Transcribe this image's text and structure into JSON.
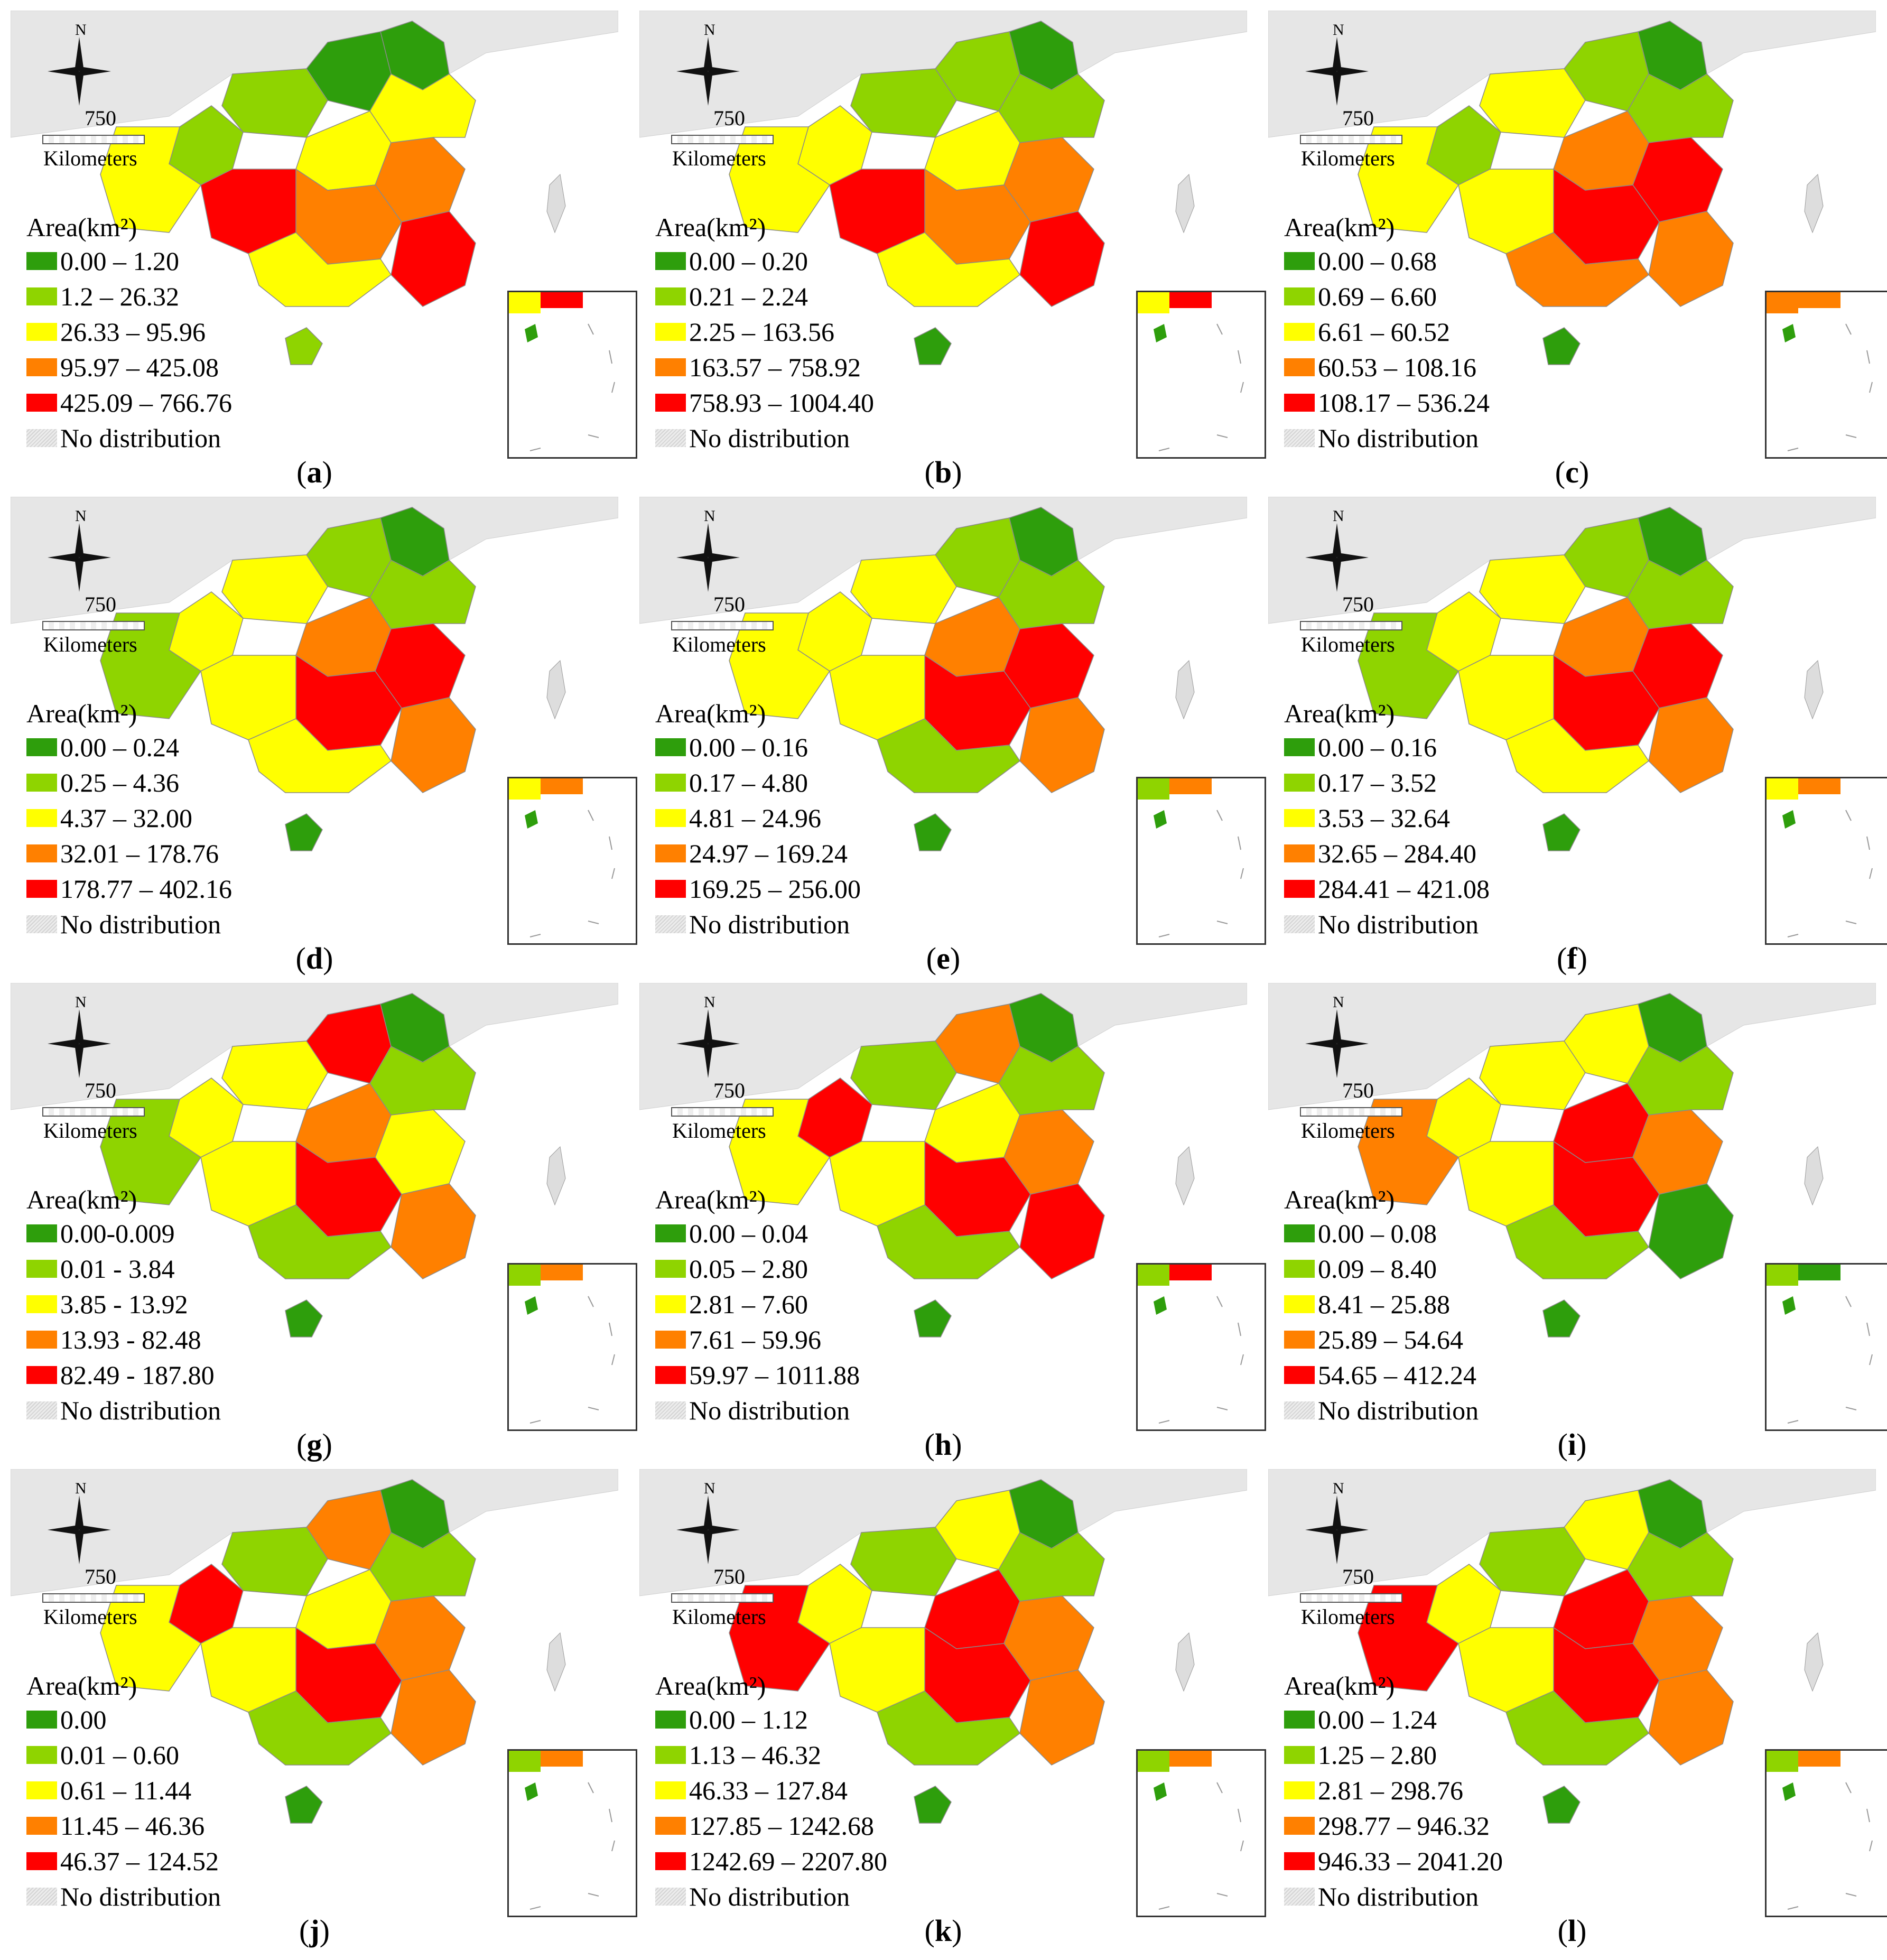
{
  "figure": {
    "colors": {
      "class1": "#2e9e0c",
      "class2": "#8fd400",
      "class3": "#ffff00",
      "class4": "#ff8000",
      "class5": "#ff0000",
      "no_distribution": "#dddddd",
      "background_map": "#e6e6e6"
    },
    "common": {
      "north_label": "N",
      "scale_value": "750",
      "scale_unit": "Kilometers",
      "legend_title": "Area(km²)",
      "no_distribution": "No distribution",
      "compass_icon": "compass-rose-icon"
    },
    "panels": [
      {
        "letter": "a",
        "ranges": [
          "0.00 – 1.20",
          "1.2 – 26.32",
          "26.33 – 95.96",
          "95.97 – 425.08",
          "425.09 – 766.76"
        ]
      },
      {
        "letter": "b",
        "ranges": [
          "0.00 – 0.20",
          "0.21 – 2.24",
          "2.25 – 163.56",
          "163.57 – 758.92",
          "758.93 – 1004.40"
        ]
      },
      {
        "letter": "c",
        "ranges": [
          "0.00 – 0.68",
          "0.69 – 6.60",
          "6.61 – 60.52",
          "60.53 – 108.16",
          "108.17 – 536.24"
        ]
      },
      {
        "letter": "d",
        "ranges": [
          "0.00 – 0.24",
          "0.25 – 4.36",
          "4.37 – 32.00",
          "32.01 – 178.76",
          "178.77 – 402.16"
        ]
      },
      {
        "letter": "e",
        "ranges": [
          "0.00 – 0.16",
          "0.17 – 4.80",
          "4.81 – 24.96",
          "24.97 – 169.24",
          "169.25 – 256.00"
        ]
      },
      {
        "letter": "f",
        "ranges": [
          "0.00 – 0.16",
          "0.17 – 3.52",
          "3.53 – 32.64",
          "32.65 – 284.40",
          "284.41 – 421.08"
        ]
      },
      {
        "letter": "g",
        "ranges": [
          "0.00-0.009",
          "0.01 - 3.84",
          "3.85 - 13.92",
          "13.93 - 82.48",
          "82.49 - 187.80"
        ]
      },
      {
        "letter": "h",
        "ranges": [
          "0.00 – 0.04",
          "0.05 – 2.80",
          "2.81 – 7.60",
          "7.61 – 59.96",
          "59.97 – 1011.88"
        ]
      },
      {
        "letter": "i",
        "ranges": [
          "0.00 – 0.08",
          "0.09 – 8.40",
          "8.41 – 25.88",
          "25.89 – 54.64",
          "54.65 – 412.24"
        ]
      },
      {
        "letter": "j",
        "ranges": [
          "0.00",
          "0.01 – 0.60",
          "0.61 – 11.44",
          "11.45 – 46.36",
          "46.37 – 124.52"
        ]
      },
      {
        "letter": "k",
        "ranges": [
          "0.00 – 1.12",
          "1.13 – 46.32",
          "46.33 – 127.84",
          "127.85 – 1242.68",
          "1242.69 – 2207.80"
        ]
      },
      {
        "letter": "l",
        "ranges": [
          "0.00 – 1.24",
          "1.25 – 2.80",
          "2.81 – 298.76",
          "298.77 – 946.32",
          "946.33 – 2041.20"
        ]
      }
    ],
    "region_classes": [
      [
        1,
        1,
        2,
        2,
        3,
        3,
        4,
        4,
        5,
        5,
        3,
        3,
        2
      ],
      [
        1,
        2,
        2,
        3,
        3,
        3,
        4,
        4,
        5,
        5,
        3,
        2,
        1
      ],
      [
        1,
        2,
        3,
        2,
        3,
        4,
        5,
        5,
        4,
        3,
        4,
        2,
        1
      ],
      [
        1,
        2,
        3,
        3,
        2,
        4,
        5,
        5,
        4,
        3,
        3,
        2,
        1
      ],
      [
        1,
        2,
        3,
        3,
        3,
        4,
        5,
        5,
        4,
        3,
        2,
        2,
        1
      ],
      [
        1,
        2,
        3,
        3,
        2,
        4,
        5,
        5,
        4,
        3,
        3,
        2,
        1
      ],
      [
        1,
        5,
        3,
        3,
        2,
        4,
        3,
        5,
        4,
        3,
        2,
        2,
        1
      ],
      [
        1,
        4,
        2,
        5,
        3,
        3,
        4,
        5,
        5,
        3,
        2,
        2,
        1
      ],
      [
        1,
        3,
        3,
        3,
        4,
        5,
        4,
        5,
        1,
        3,
        2,
        2,
        1
      ],
      [
        1,
        4,
        2,
        5,
        3,
        3,
        4,
        5,
        4,
        3,
        2,
        2,
        1
      ],
      [
        1,
        3,
        2,
        3,
        5,
        5,
        4,
        5,
        4,
        3,
        2,
        2,
        1
      ],
      [
        1,
        3,
        2,
        3,
        5,
        5,
        4,
        5,
        4,
        3,
        2,
        2,
        1
      ]
    ]
  }
}
